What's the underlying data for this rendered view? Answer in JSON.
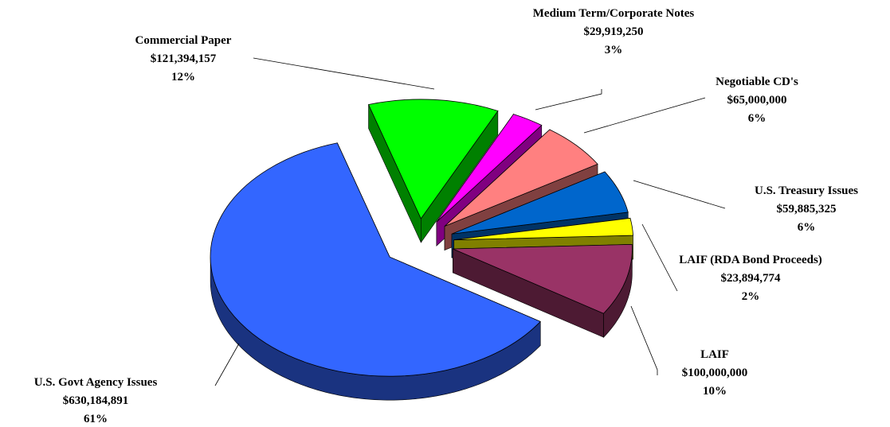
{
  "chart_data": {
    "type": "pie3d",
    "categories": [
      "Commercial Paper",
      "Medium Term/Corporate Notes",
      "Negotiable CD's",
      "U.S. Treasury Issues",
      "LAIF (RDA Bond Proceeds)",
      "LAIF",
      "U.S. Govt Agency Issues"
    ],
    "values": [
      121394157,
      29919250,
      65000000,
      59885325,
      23894774,
      100000000,
      630184891
    ],
    "value_labels": [
      "$121,394,157",
      "$29,919,250",
      "$65,000,000",
      "$59,885,325",
      "$23,894,774",
      "$100,000,000",
      "$630,184,891"
    ],
    "percent_labels": [
      "12%",
      "3%",
      "6%",
      "6%",
      "2%",
      "10%",
      "61%"
    ],
    "colors": [
      "#00ff00",
      "#ff00ff",
      "#ff8080",
      "#0066cc",
      "#ffff00",
      "#993366",
      "#3366ff"
    ]
  }
}
